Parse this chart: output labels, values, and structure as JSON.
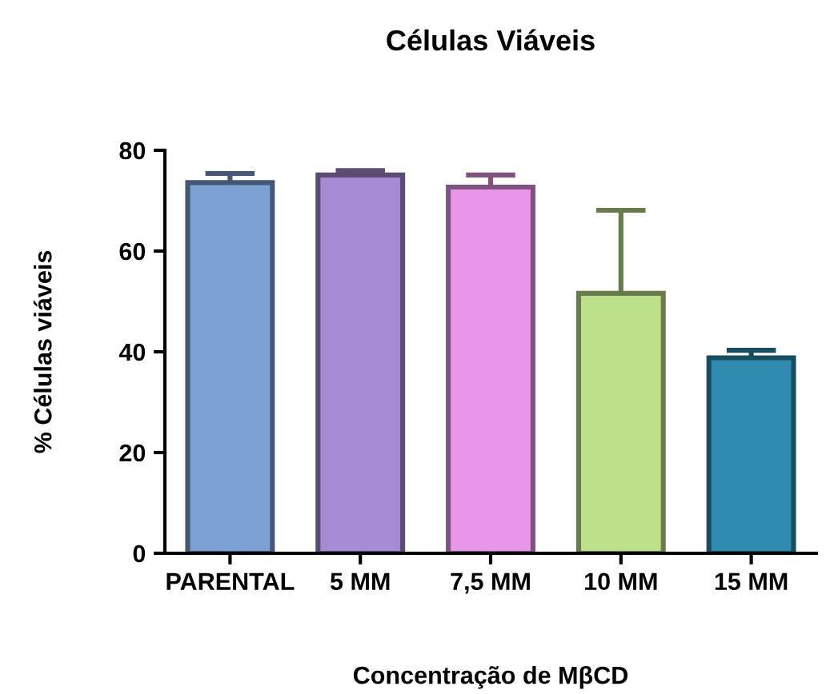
{
  "chart_data": {
    "type": "bar",
    "title": "Células Viáveis",
    "xlabel": "Concentração de MβCD",
    "ylabel": "% Células viáveis",
    "categories": [
      "PARENTAL",
      "5 MM",
      "7,5 MM",
      "10 MM",
      "15 MM"
    ],
    "values": [
      73.6,
      75.1,
      72.7,
      51.6,
      38.8
    ],
    "errors": [
      1.8,
      0.9,
      2.4,
      16.5,
      1.5
    ],
    "colors": [
      "#7ba0d4",
      "#a68ad2",
      "#e995e8",
      "#bcdf8a",
      "#2e8aae"
    ],
    "ylim": [
      0,
      80
    ],
    "yticks": [
      0,
      20,
      40,
      60,
      80
    ],
    "grid": false,
    "legend": false
  }
}
